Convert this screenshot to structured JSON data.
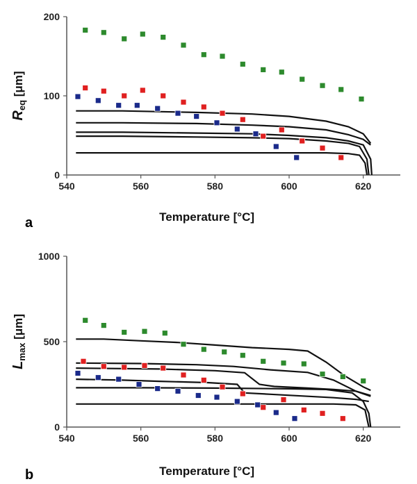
{
  "chart_data": [
    {
      "panel_label": "a",
      "type": "scatter",
      "xlabel": "Temperature [°C]",
      "ylabel": {
        "main": "R",
        "sub": "eq",
        "unit": " [μm]"
      },
      "xlim": [
        540,
        630
      ],
      "ylim": [
        0,
        200
      ],
      "xticks": [
        540,
        560,
        580,
        600,
        620
      ],
      "yticks": [
        0,
        100,
        200
      ],
      "grid": false,
      "series": [
        {
          "color": "#2d8a2d",
          "points": [
            [
              545,
              183
            ],
            [
              550,
              180
            ],
            [
              555.5,
              172
            ],
            [
              560.5,
              178
            ],
            [
              566,
              174
            ],
            [
              571.5,
              164
            ],
            [
              577,
              152
            ],
            [
              582,
              150
            ],
            [
              587.5,
              140
            ],
            [
              593,
              133
            ],
            [
              598,
              130
            ],
            [
              603.5,
              121
            ],
            [
              609,
              113
            ],
            [
              614,
              108
            ],
            [
              619.5,
              96
            ]
          ]
        },
        {
          "color": "#e02020",
          "points": [
            [
              545,
              110
            ],
            [
              550,
              106
            ],
            [
              555.5,
              100
            ],
            [
              560.5,
              107
            ],
            [
              566,
              100
            ],
            [
              571.5,
              92
            ],
            [
              577,
              86
            ],
            [
              582,
              78
            ],
            [
              587.5,
              70
            ],
            [
              593,
              49
            ],
            [
              598,
              57
            ],
            [
              603.5,
              43
            ],
            [
              609,
              34
            ],
            [
              614,
              22
            ]
          ]
        },
        {
          "color": "#1a2a8a",
          "points": [
            [
              543,
              99
            ],
            [
              548.5,
              94
            ],
            [
              554,
              88
            ],
            [
              559,
              88
            ],
            [
              564.5,
              84
            ],
            [
              570,
              78
            ],
            [
              575,
              74
            ],
            [
              580.5,
              66
            ],
            [
              586,
              58
            ],
            [
              591,
              52
            ],
            [
              596.5,
              36
            ],
            [
              602,
              22
            ]
          ]
        }
      ],
      "curves": [
        [
          [
            542.5,
            81
          ],
          [
            555,
            81
          ],
          [
            575,
            79
          ],
          [
            590,
            77
          ],
          [
            600,
            74
          ],
          [
            610,
            68
          ],
          [
            616,
            61
          ],
          [
            620,
            52
          ],
          [
            622,
            40
          ]
        ],
        [
          [
            542.5,
            66
          ],
          [
            555,
            66
          ],
          [
            575,
            65
          ],
          [
            590,
            63
          ],
          [
            600,
            61
          ],
          [
            610,
            57
          ],
          [
            616,
            51
          ],
          [
            620,
            45
          ],
          [
            622,
            38
          ]
        ],
        [
          [
            542.5,
            54
          ],
          [
            555,
            54
          ],
          [
            575,
            53
          ],
          [
            590,
            52
          ],
          [
            600,
            50
          ],
          [
            610,
            47
          ],
          [
            616,
            43
          ],
          [
            620,
            38
          ],
          [
            622,
            20
          ],
          [
            622.3,
            0
          ]
        ],
        [
          [
            542.5,
            49
          ],
          [
            555,
            49
          ],
          [
            575,
            48
          ],
          [
            590,
            47
          ],
          [
            600,
            46
          ],
          [
            610,
            43
          ],
          [
            616,
            40
          ],
          [
            619,
            36
          ],
          [
            621,
            20
          ],
          [
            621.5,
            0
          ]
        ],
        [
          [
            542.5,
            28
          ],
          [
            560,
            28
          ],
          [
            580,
            28
          ],
          [
            600,
            28
          ],
          [
            610,
            28
          ],
          [
            616,
            27
          ],
          [
            619,
            25
          ],
          [
            620.5,
            15
          ],
          [
            621,
            0
          ]
        ]
      ]
    },
    {
      "panel_label": "b",
      "type": "scatter",
      "xlabel": "Temperature [°C]",
      "ylabel": {
        "main": "L",
        "sub": "max",
        "unit": " [μm]"
      },
      "xlim": [
        540,
        630
      ],
      "ylim": [
        0,
        1000
      ],
      "xticks": [
        540,
        560,
        580,
        600,
        620
      ],
      "yticks": [
        0,
        500,
        1000
      ],
      "grid": false,
      "series": [
        {
          "color": "#2d8a2d",
          "points": [
            [
              545,
              625
            ],
            [
              550,
              595
            ],
            [
              555.5,
              555
            ],
            [
              561,
              560
            ],
            [
              566.5,
              550
            ],
            [
              571.5,
              485
            ],
            [
              577,
              455
            ],
            [
              582.5,
              440
            ],
            [
              587.5,
              420
            ],
            [
              593,
              385
            ],
            [
              598.5,
              375
            ],
            [
              604,
              370
            ],
            [
              609,
              310
            ],
            [
              614.5,
              295
            ],
            [
              620,
              270
            ]
          ]
        },
        {
          "color": "#e02020",
          "points": [
            [
              544.5,
              385
            ],
            [
              550,
              355
            ],
            [
              555.5,
              350
            ],
            [
              561,
              360
            ],
            [
              566,
              345
            ],
            [
              571.5,
              305
            ],
            [
              577,
              275
            ],
            [
              582,
              235
            ],
            [
              587.5,
              195
            ],
            [
              593,
              115
            ],
            [
              598.5,
              160
            ],
            [
              604,
              100
            ],
            [
              609,
              80
            ],
            [
              614.5,
              50
            ]
          ]
        },
        {
          "color": "#1a2a8a",
          "points": [
            [
              543,
              315
            ],
            [
              548.5,
              290
            ],
            [
              554,
              280
            ],
            [
              559.5,
              250
            ],
            [
              564.5,
              225
            ],
            [
              570,
              210
            ],
            [
              575.5,
              185
            ],
            [
              580.5,
              175
            ],
            [
              586,
              150
            ],
            [
              591.5,
              130
            ],
            [
              596.5,
              85
            ],
            [
              601.5,
              50
            ]
          ]
        }
      ],
      "curves": [
        [
          [
            542.5,
            515
          ],
          [
            550,
            515
          ],
          [
            560,
            505
          ],
          [
            570,
            495
          ],
          [
            580,
            480
          ],
          [
            590,
            465
          ],
          [
            600,
            455
          ],
          [
            605,
            445
          ],
          [
            610,
            380
          ],
          [
            615,
            300
          ],
          [
            620,
            235
          ],
          [
            622,
            215
          ]
        ],
        [
          [
            542.5,
            375
          ],
          [
            560,
            372
          ],
          [
            575,
            365
          ],
          [
            585,
            355
          ],
          [
            595,
            335
          ],
          [
            605,
            320
          ],
          [
            612,
            275
          ],
          [
            618,
            210
          ],
          [
            622,
            185
          ]
        ],
        [
          [
            542.5,
            345
          ],
          [
            565,
            340
          ],
          [
            580,
            330
          ],
          [
            588,
            318
          ],
          [
            592,
            250
          ],
          [
            596,
            238
          ],
          [
            605,
            228
          ],
          [
            612,
            220
          ],
          [
            618,
            210
          ],
          [
            622,
            180
          ]
        ],
        [
          [
            542.5,
            280
          ],
          [
            555,
            275
          ],
          [
            565,
            268
          ],
          [
            578,
            260
          ],
          [
            586,
            250
          ],
          [
            588,
            200
          ],
          [
            595,
            192
          ],
          [
            605,
            180
          ],
          [
            612,
            172
          ],
          [
            618,
            162
          ],
          [
            621.5,
            150
          ]
        ],
        [
          [
            542.5,
            230
          ],
          [
            560,
            230
          ],
          [
            580,
            228
          ],
          [
            600,
            224
          ],
          [
            610,
            220
          ],
          [
            617,
            200
          ],
          [
            620,
            150
          ],
          [
            621.5,
            80
          ],
          [
            622,
            0
          ]
        ],
        [
          [
            542.5,
            135
          ],
          [
            560,
            135
          ],
          [
            580,
            135
          ],
          [
            600,
            135
          ],
          [
            612,
            135
          ],
          [
            618,
            130
          ],
          [
            620.5,
            100
          ],
          [
            621.5,
            0
          ]
        ]
      ]
    }
  ]
}
